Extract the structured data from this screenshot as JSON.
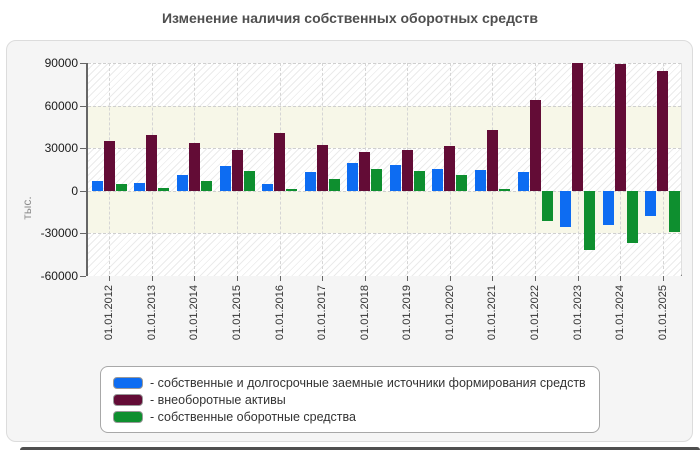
{
  "title": "Изменение наличия собственных оборотных средств",
  "chart_data": {
    "type": "bar",
    "title": "Изменение наличия собственных оборотных средств",
    "xlabel": "",
    "ylabel": "тыс.",
    "ylim": [
      -60000,
      90000
    ],
    "ytick_step": 30000,
    "grid": "dashed horizontal and vertical",
    "plot_background": "alternating hatched and cream bands every 30000",
    "legend_position": "bottom box",
    "categories": [
      "01.01.2012",
      "01.01.2013",
      "01.01.2014",
      "01.01.2015",
      "01.01.2016",
      "01.01.2017",
      "01.01.2018",
      "01.01.2019",
      "01.01.2020",
      "01.01.2021",
      "01.01.2022",
      "01.01.2023",
      "01.01.2024",
      "01.01.2025"
    ],
    "series": [
      {
        "name": "- собственные и долгосрочные заемные источники формирования средств",
        "color": "#0D6CF2",
        "values": [
          7000,
          5500,
          11400,
          17700,
          5000,
          13200,
          19300,
          18100,
          15300,
          14400,
          13500,
          -25400,
          -24400,
          -17500
        ]
      },
      {
        "name": "- внеоборотные активы",
        "color": "#630C36",
        "values": [
          34800,
          39000,
          34000,
          29000,
          41000,
          32400,
          27000,
          28400,
          31900,
          42500,
          64000,
          90000,
          89500,
          84500
        ]
      },
      {
        "name": "- собственные оборотные средства",
        "color": "#0E8F2F",
        "values": [
          4800,
          2000,
          7200,
          13700,
          1300,
          8600,
          15100,
          13700,
          11400,
          1000,
          -21000,
          -41800,
          -37000,
          -29300
        ]
      }
    ]
  },
  "colors": {
    "card_background": "#F5F5F5",
    "cream_band": "#F7F7E8",
    "axis": "#666666",
    "title_text": "#4F4F4F",
    "series_blue": "#0D6CF2",
    "series_maroon": "#630C36",
    "series_green": "#0E8F2F"
  }
}
